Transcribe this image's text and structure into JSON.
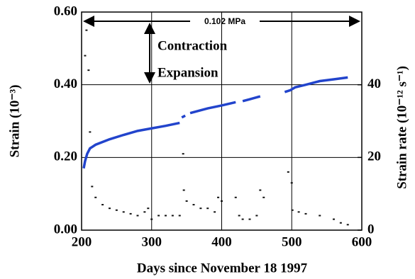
{
  "chart_data": {
    "type": "line",
    "xlabel": "Days since November 18 1997",
    "ylabel": "Strain (10⁻³)",
    "y2label": "Strain rate (10⁻¹² s⁻¹)",
    "annotations": [
      "0.102 MPa",
      "Contraction",
      "Expansion"
    ],
    "xlim": [
      200,
      600
    ],
    "xticks": [
      200,
      300,
      400,
      500,
      600
    ],
    "ylim": [
      0,
      0.6
    ],
    "yticks": [
      {
        "value": 0,
        "label": "0.00"
      },
      {
        "value": 0.2,
        "label": "0.20"
      },
      {
        "value": 0.4,
        "label": "0.40"
      },
      {
        "value": 0.6,
        "label": "0.60"
      }
    ],
    "y2lim": [
      0,
      60
    ],
    "y2ticks": [
      0,
      20,
      40
    ],
    "grid": true,
    "series": [
      {
        "name": "Strain",
        "type": "line",
        "color": "#2244cc",
        "x": [
          203,
          205,
          208,
          212,
          220,
          240,
          260,
          280,
          300,
          320,
          340,
          342,
          343,
          348,
          352,
          355,
          380,
          400,
          420,
          425,
          430,
          440,
          455,
          460,
          490,
          498,
          505,
          520,
          540,
          560,
          580
        ],
        "values": [
          0.17,
          0.19,
          0.21,
          0.225,
          0.235,
          0.25,
          0.262,
          0.273,
          0.28,
          0.287,
          0.295,
          null,
          0.31,
          0.315,
          null,
          0.322,
          0.335,
          0.343,
          0.352,
          null,
          0.355,
          0.36,
          0.368,
          null,
          0.38,
          0.385,
          0.393,
          0.4,
          0.41,
          0.415,
          0.42
        ]
      },
      {
        "name": "Strain rate",
        "type": "scatter",
        "color": "#111111",
        "axis": "y2",
        "x": [
          205,
          207,
          210,
          212,
          215,
          220,
          230,
          240,
          250,
          260,
          270,
          280,
          290,
          295,
          300,
          310,
          320,
          330,
          340,
          345,
          346,
          350,
          360,
          370,
          380,
          390,
          395,
          400,
          420,
          425,
          430,
          440,
          450,
          455,
          460,
          495,
          500,
          501,
          510,
          520,
          540,
          560,
          570,
          580
        ],
        "values": [
          48,
          55,
          44,
          27,
          12,
          9,
          7,
          6,
          5.5,
          5,
          4.5,
          4,
          5,
          6,
          3,
          4,
          4,
          4,
          4,
          21,
          11,
          8,
          7,
          6,
          6,
          5,
          9,
          8,
          9,
          4,
          3,
          3,
          4,
          11,
          9,
          16,
          13,
          5.5,
          5,
          4.5,
          4,
          3,
          2,
          1.5
        ]
      }
    ]
  }
}
